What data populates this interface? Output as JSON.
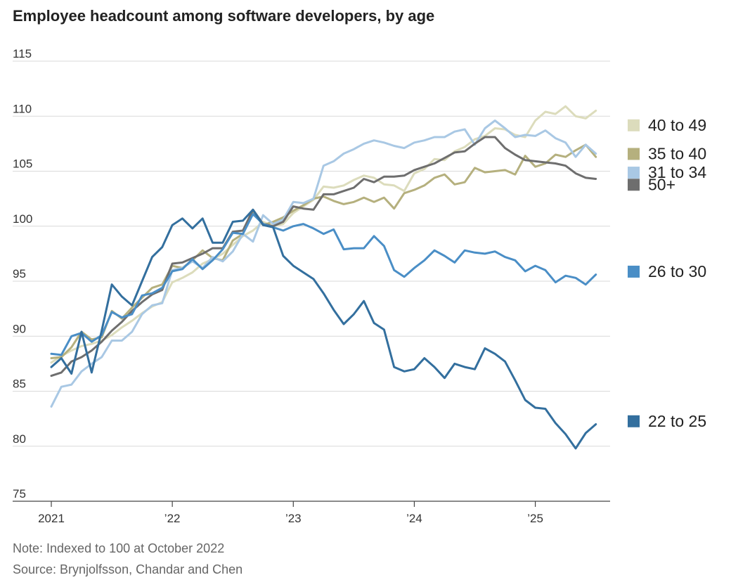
{
  "chart_data": {
    "type": "line",
    "title": "Employee headcount among software developers, by age",
    "note": "Note: Indexed to 100 at October 2022",
    "source": "Source: Brynjolfsson, Chandar and Chen",
    "ylim": [
      75,
      115
    ],
    "yticks": [
      {
        "value": 115,
        "label": "115"
      },
      {
        "value": 110,
        "label": "110"
      },
      {
        "value": 105,
        "label": "105"
      },
      {
        "value": 100,
        "label": "100"
      },
      {
        "value": 95,
        "label": "95"
      },
      {
        "value": 90,
        "label": "90"
      },
      {
        "value": 85,
        "label": "85"
      },
      {
        "value": 80,
        "label": "80"
      },
      {
        "value": 75,
        "label": "75"
      }
    ],
    "xlim": [
      0,
      55
    ],
    "xticks": [
      {
        "value": 0,
        "label": "2021"
      },
      {
        "value": 12,
        "label": "’22"
      },
      {
        "value": 24,
        "label": "’23"
      },
      {
        "value": 36,
        "label": "’24"
      },
      {
        "value": 48,
        "label": "’25"
      }
    ],
    "x_unit": "months since January 2021",
    "grid": true,
    "series": [
      {
        "name": "40 to 49",
        "color": "#dcdcbc",
        "legend_value": 109.2,
        "values": [
          87.6,
          88.2,
          88.7,
          89.1,
          89.3,
          89.6,
          90.1,
          90.8,
          91.4,
          92.1,
          92.7,
          93.1,
          94.9,
          95.3,
          95.8,
          96.6,
          97.0,
          97.5,
          98.3,
          99.1,
          99.6,
          100.4,
          100.0,
          100.2,
          101.2,
          101.8,
          102.4,
          103.6,
          103.5,
          103.7,
          104.2,
          104.6,
          104.4,
          103.8,
          103.7,
          103.2,
          104.8,
          105.2,
          106.1,
          106.0,
          106.8,
          107.2,
          107.9,
          108.2,
          108.9,
          108.8,
          108.3,
          108.1,
          109.6,
          110.4,
          110.2,
          110.9,
          110.0,
          109.8,
          110.5
        ]
      },
      {
        "name": "35 to 40",
        "color": "#b5b07e",
        "legend_value": 106.6,
        "values": [
          88.0,
          88.1,
          89.0,
          90.4,
          89.7,
          89.9,
          92.3,
          91.6,
          92.6,
          93.5,
          94.4,
          94.7,
          96.4,
          96.2,
          96.9,
          97.8,
          97.1,
          96.9,
          98.7,
          99.3,
          101.3,
          100.1,
          100.4,
          100.8,
          101.4,
          101.9,
          102.5,
          102.7,
          102.3,
          102.0,
          102.2,
          102.6,
          102.2,
          102.6,
          101.6,
          103.0,
          103.3,
          103.7,
          104.4,
          104.7,
          103.8,
          104.0,
          105.3,
          104.9,
          105.0,
          105.1,
          104.7,
          106.4,
          105.4,
          105.7,
          106.5,
          106.3,
          106.9,
          107.4,
          106.3
        ]
      },
      {
        "name": "31 to 34",
        "color": "#a9c8e4",
        "legend_value": 104.9,
        "values": [
          83.6,
          85.4,
          85.6,
          86.8,
          87.5,
          88.1,
          89.6,
          89.6,
          90.4,
          92.0,
          92.8,
          93.0,
          96.0,
          96.2,
          96.8,
          96.2,
          97.2,
          96.8,
          97.7,
          99.3,
          98.6,
          101.0,
          100.2,
          100.6,
          102.2,
          102.1,
          102.5,
          105.5,
          105.9,
          106.6,
          107.0,
          107.5,
          107.8,
          107.6,
          107.3,
          107.1,
          107.6,
          107.8,
          108.1,
          108.1,
          108.6,
          108.8,
          107.4,
          108.9,
          109.6,
          108.9,
          108.1,
          108.3,
          108.2,
          108.7,
          108.0,
          107.6,
          106.3,
          107.4,
          106.6
        ]
      },
      {
        "name": "50+",
        "color": "#6e6e6e",
        "legend_value": 103.8,
        "values": [
          86.4,
          86.7,
          87.7,
          88.1,
          88.7,
          89.5,
          90.5,
          91.3,
          92.3,
          93.1,
          93.8,
          94.2,
          96.6,
          96.7,
          97.1,
          97.5,
          98.0,
          98.0,
          99.5,
          99.6,
          101.5,
          100.2,
          100.0,
          100.4,
          101.8,
          101.6,
          101.5,
          102.9,
          102.9,
          103.2,
          103.5,
          104.3,
          104.0,
          104.5,
          104.5,
          104.6,
          105.1,
          105.4,
          105.7,
          106.2,
          106.7,
          106.8,
          107.5,
          108.1,
          108.1,
          107.1,
          106.5,
          106.0,
          105.9,
          105.8,
          105.7,
          105.5,
          104.8,
          104.4,
          104.3
        ]
      },
      {
        "name": "26 to 30",
        "color": "#4a8ec6",
        "legend_value": 95.9,
        "values": [
          88.4,
          88.3,
          90.0,
          90.3,
          89.5,
          90.1,
          92.2,
          91.7,
          92.0,
          93.7,
          93.9,
          94.4,
          95.9,
          96.1,
          97.0,
          96.1,
          96.9,
          97.9,
          99.4,
          99.3,
          101.1,
          100.2,
          99.9,
          99.6,
          100.0,
          100.2,
          99.8,
          99.3,
          99.7,
          97.9,
          98.0,
          98.0,
          99.1,
          98.2,
          96.0,
          95.4,
          96.2,
          96.9,
          97.8,
          97.3,
          96.7,
          97.8,
          97.6,
          97.5,
          97.7,
          97.2,
          96.9,
          95.9,
          96.4,
          96.0,
          94.9,
          95.5,
          95.3,
          94.7,
          95.6
        ]
      },
      {
        "name": "22 to 25",
        "color": "#336f9e",
        "legend_value": 82.3,
        "values": [
          87.2,
          88.0,
          86.6,
          90.4,
          86.7,
          90.5,
          94.7,
          93.6,
          92.8,
          95.0,
          97.2,
          98.1,
          100.1,
          100.7,
          99.8,
          100.7,
          98.5,
          98.5,
          100.4,
          100.5,
          101.5,
          100.1,
          99.9,
          97.3,
          96.4,
          95.8,
          95.2,
          93.9,
          92.4,
          91.1,
          92.0,
          93.2,
          91.2,
          90.6,
          87.2,
          86.8,
          87.0,
          88.0,
          87.2,
          86.2,
          87.5,
          87.2,
          87.0,
          88.9,
          88.4,
          87.7,
          86.0,
          84.2,
          83.5,
          83.4,
          82.1,
          81.1,
          79.8,
          81.2,
          82.0
        ]
      }
    ]
  }
}
